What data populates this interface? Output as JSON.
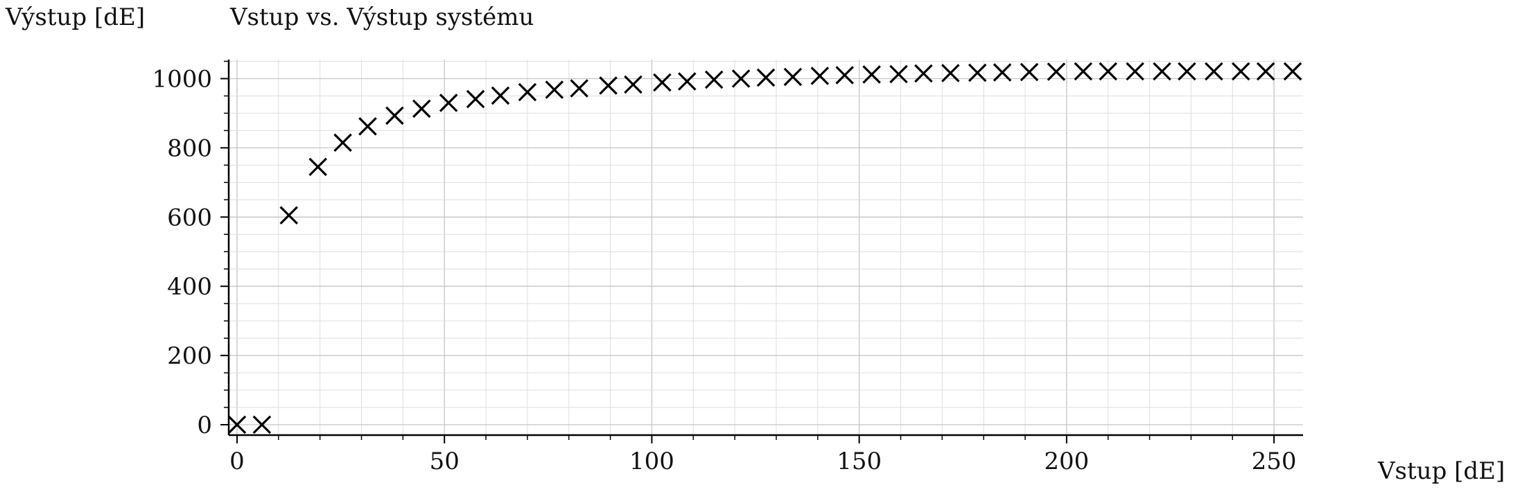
{
  "chart_data": {
    "type": "scatter",
    "title": "Vstup vs. Výstup systému",
    "xlabel": "Vstup [dE]",
    "ylabel": "Výstup [dE]",
    "xlim": [
      -2,
      257
    ],
    "ylim": [
      -30,
      1055
    ],
    "xticks": [
      0,
      50,
      100,
      150,
      200,
      250
    ],
    "yticks": [
      0,
      200,
      400,
      600,
      800,
      1000
    ],
    "x_minor_step": 10,
    "y_minor_step": 50,
    "grid": true,
    "marker": "x",
    "marker_color": "#000000",
    "series": [
      {
        "points": [
          [
            0,
            0
          ],
          [
            6,
            0
          ],
          [
            12.5,
            605
          ],
          [
            19.5,
            745
          ],
          [
            25.5,
            815
          ],
          [
            31.5,
            862
          ],
          [
            38,
            893
          ],
          [
            44.5,
            913
          ],
          [
            51,
            930
          ],
          [
            57.5,
            941
          ],
          [
            63.5,
            951
          ],
          [
            70,
            961
          ],
          [
            76.5,
            968
          ],
          [
            82.5,
            972
          ],
          [
            89.5,
            980
          ],
          [
            95.5,
            983
          ],
          [
            102.5,
            989
          ],
          [
            108.5,
            992
          ],
          [
            115,
            997
          ],
          [
            121.5,
            1000
          ],
          [
            127.5,
            1003
          ],
          [
            134,
            1005
          ],
          [
            140.5,
            1008
          ],
          [
            146.5,
            1010
          ],
          [
            153,
            1012
          ],
          [
            159.5,
            1013
          ],
          [
            165.5,
            1015
          ],
          [
            172,
            1016
          ],
          [
            178.5,
            1017
          ],
          [
            184.5,
            1018
          ],
          [
            191,
            1019
          ],
          [
            197.5,
            1020
          ],
          [
            204,
            1021
          ],
          [
            210,
            1021
          ],
          [
            216.5,
            1021
          ],
          [
            223,
            1021
          ],
          [
            229,
            1021
          ],
          [
            235.5,
            1021
          ],
          [
            242,
            1021
          ],
          [
            248,
            1021
          ],
          [
            254.5,
            1021
          ]
        ]
      }
    ]
  }
}
